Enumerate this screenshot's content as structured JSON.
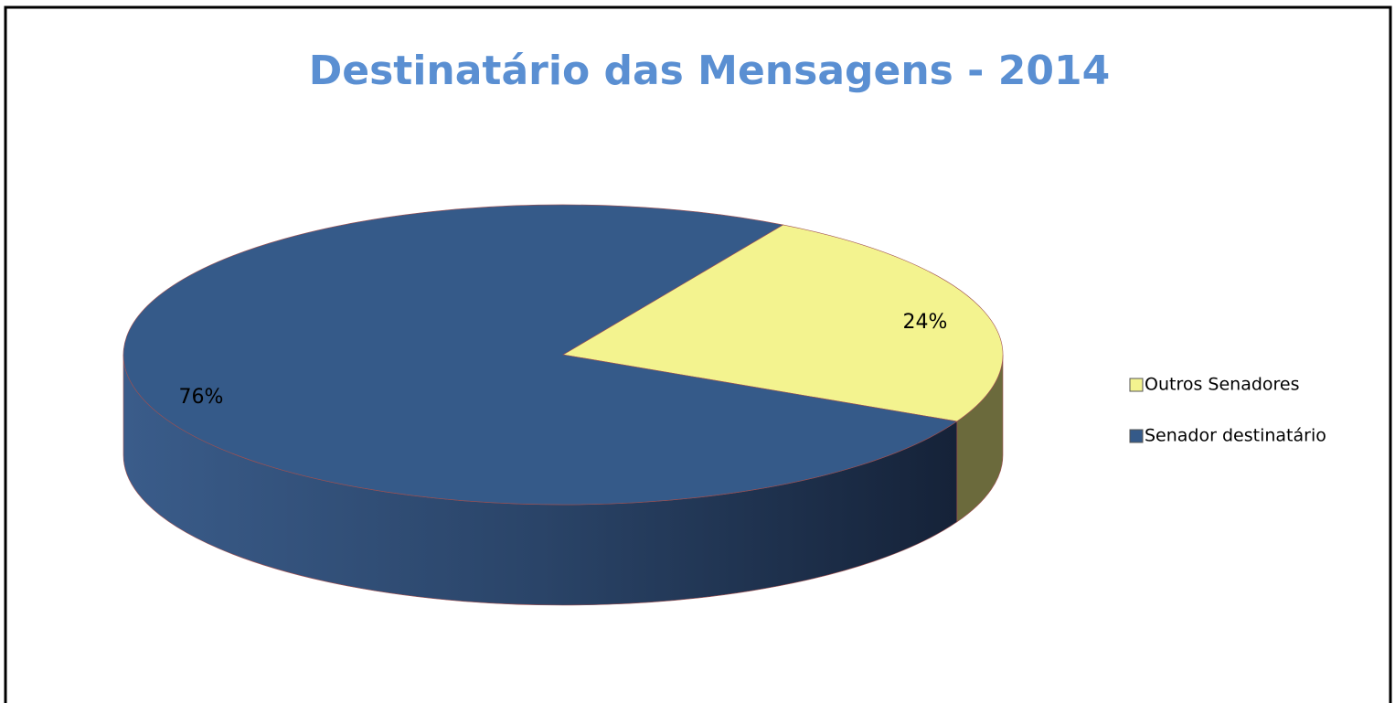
{
  "chart_data": {
    "type": "pie3d",
    "title": "Destinatário das Mensagens - 2014",
    "categories": [
      "Outros Senadores",
      "Senador destinatário"
    ],
    "values": [
      24,
      76
    ],
    "value_labels": [
      "24%",
      "76%"
    ],
    "colors": [
      "#f3f38f",
      "#355a89"
    ],
    "legend": "right"
  }
}
